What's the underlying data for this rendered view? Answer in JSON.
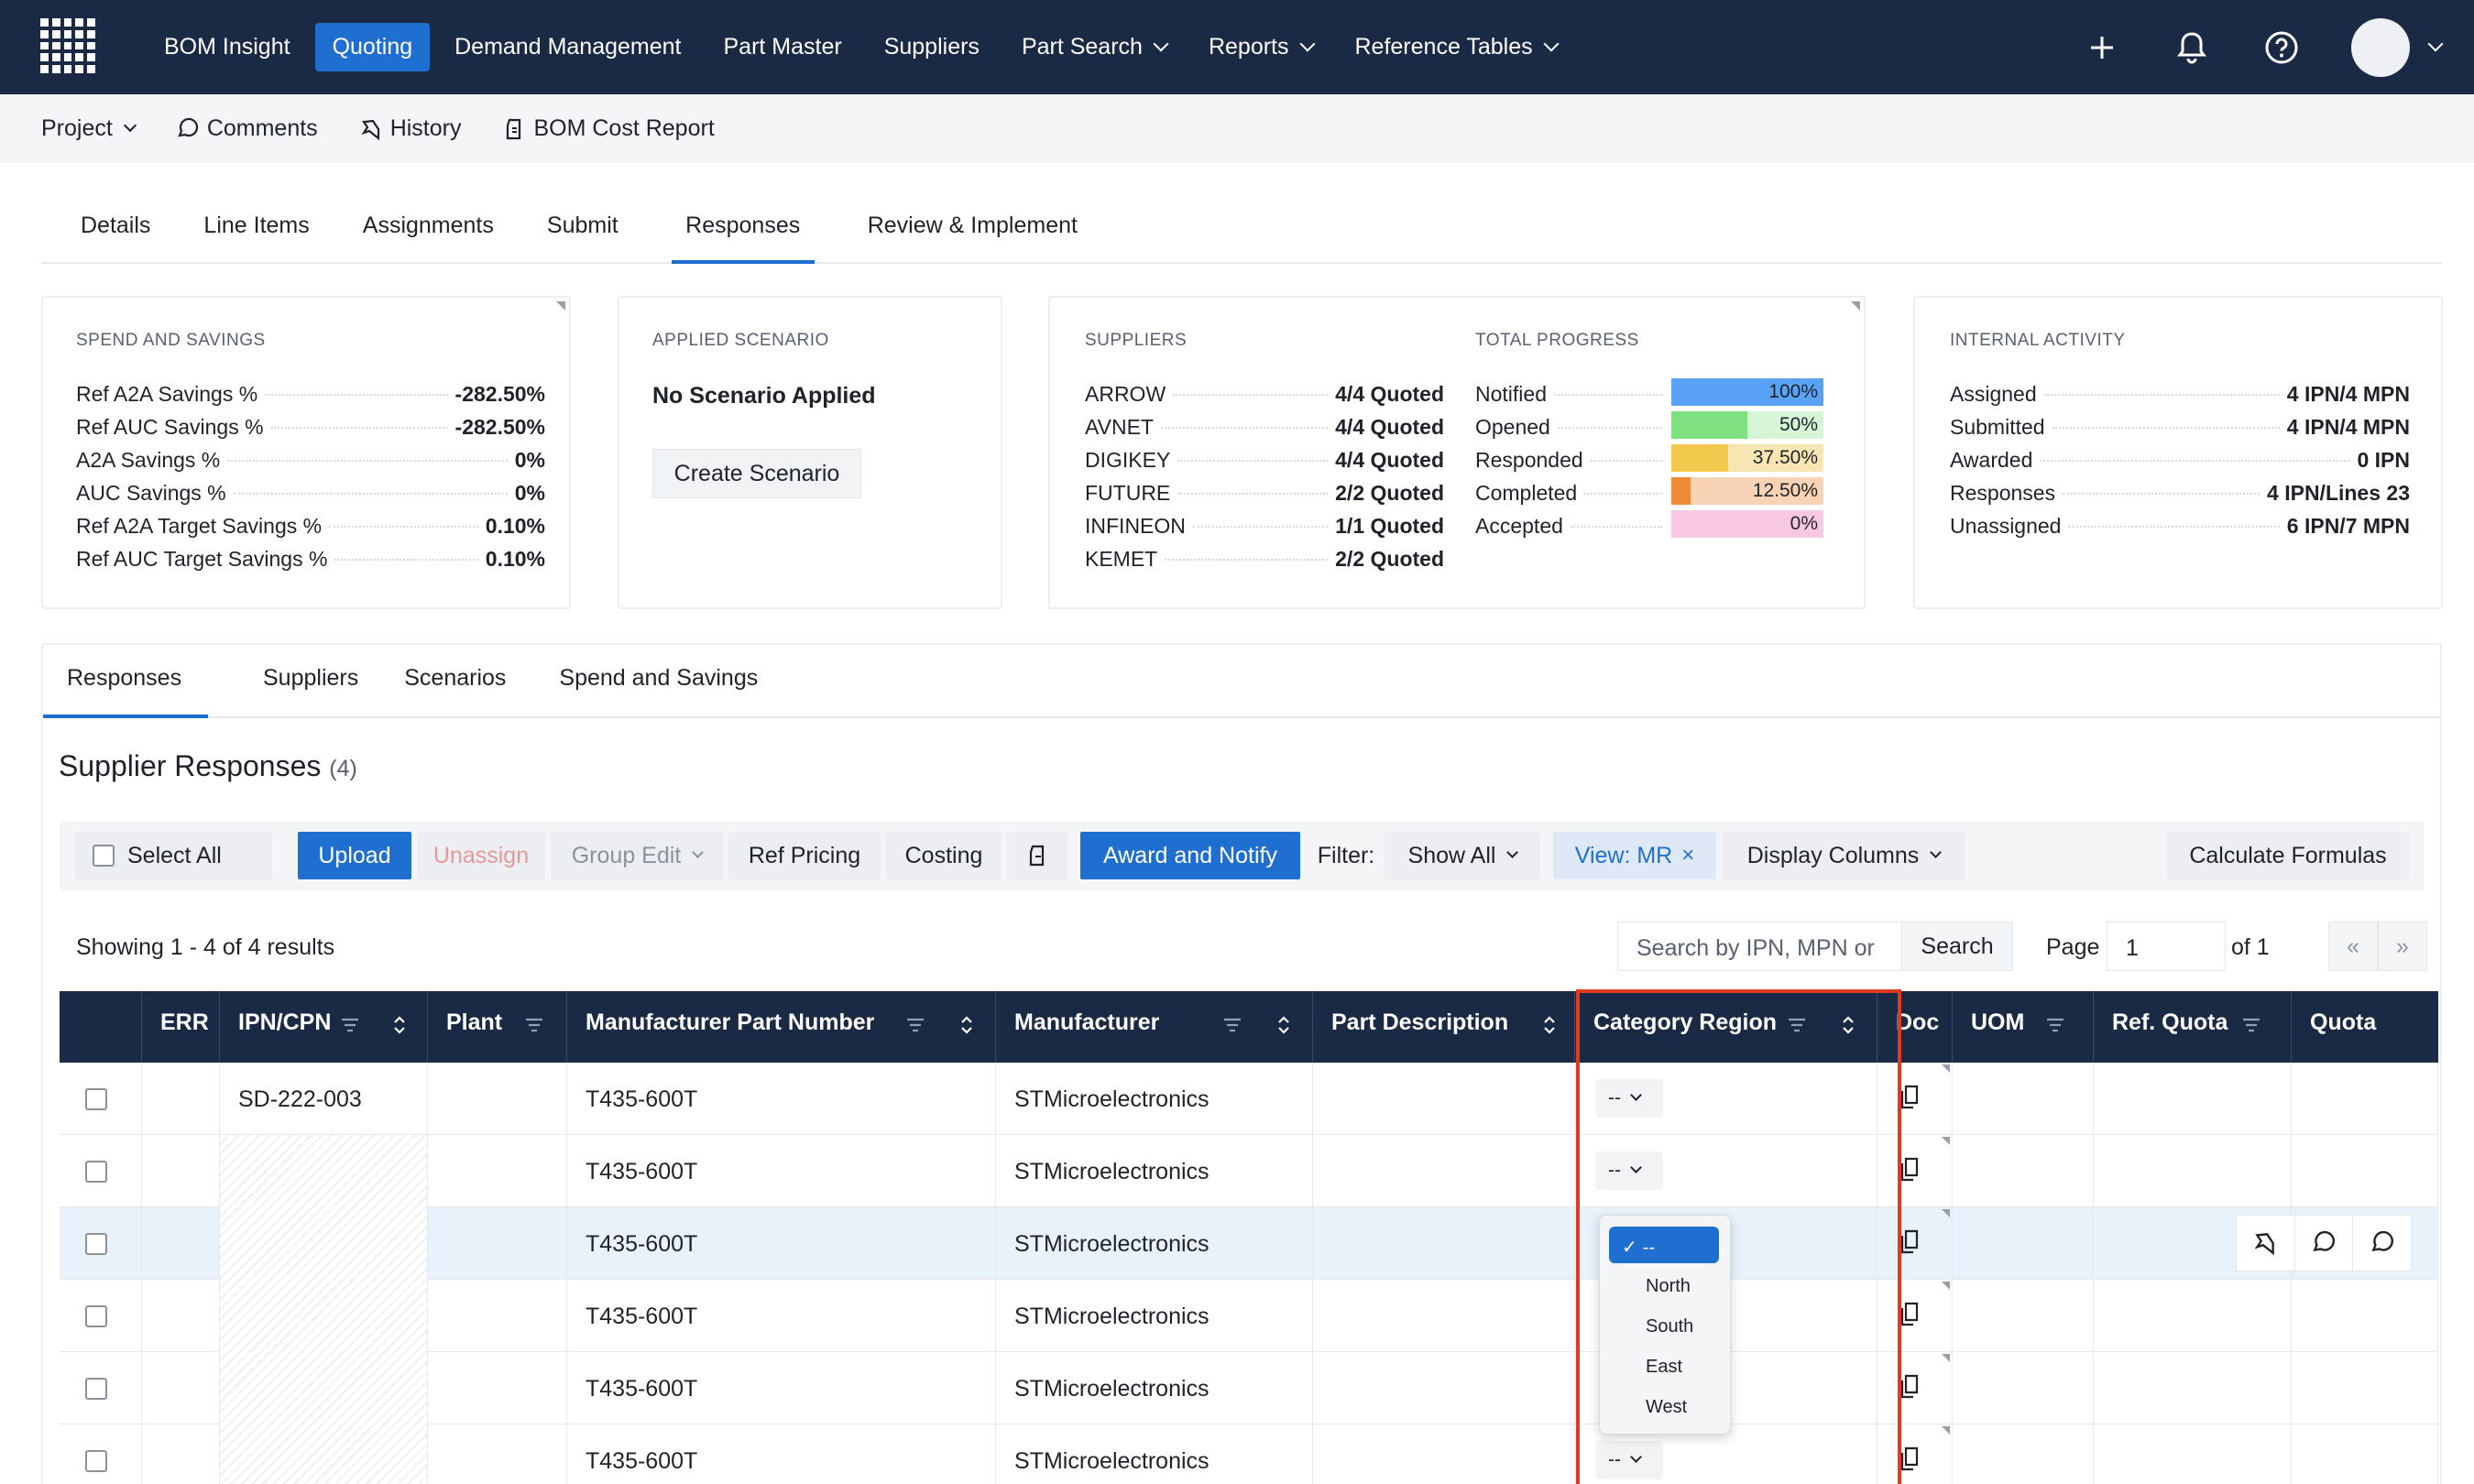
{
  "navbar": {
    "items": [
      {
        "label": "BOM Insight",
        "active": false
      },
      {
        "label": "Quoting",
        "active": true
      },
      {
        "label": "Demand Management",
        "active": false
      },
      {
        "label": "Part Master",
        "active": false
      },
      {
        "label": "Suppliers",
        "active": false
      },
      {
        "label": "Part Search",
        "active": false,
        "dropdown": true
      },
      {
        "label": "Reports",
        "active": false,
        "dropdown": true
      },
      {
        "label": "Reference Tables",
        "active": false,
        "dropdown": true
      }
    ],
    "icons": [
      "plus-icon",
      "bell-icon",
      "help-icon",
      "avatar"
    ]
  },
  "subnav": {
    "project": "Project",
    "comments": "Comments",
    "history": "History",
    "bom_cost_report": "BOM Cost Report"
  },
  "main_tabs": [
    "Details",
    "Line Items",
    "Assignments",
    "Submit",
    "Responses",
    "Review & Implement"
  ],
  "spend": {
    "title": "SPEND AND SAVINGS",
    "rows": [
      {
        "k": "Ref A2A Savings %",
        "v": "-282.50%"
      },
      {
        "k": "Ref AUC Savings %",
        "v": "-282.50%"
      },
      {
        "k": "A2A Savings %",
        "v": "0%"
      },
      {
        "k": "AUC Savings %",
        "v": "0%"
      },
      {
        "k": "Ref A2A Target Savings %",
        "v": "0.10%"
      },
      {
        "k": "Ref AUC Target Savings %",
        "v": "0.10%"
      }
    ]
  },
  "scenario": {
    "title": "APPLIED SCENARIO",
    "status": "No Scenario Applied",
    "button": "Create Scenario"
  },
  "suppliers": {
    "title": "SUPPLIERS",
    "rows": [
      {
        "k": "ARROW",
        "v": "4/4 Quoted"
      },
      {
        "k": "AVNET",
        "v": "4/4 Quoted"
      },
      {
        "k": "DIGIKEY",
        "v": "4/4 Quoted"
      },
      {
        "k": "FUTURE",
        "v": "2/2 Quoted"
      },
      {
        "k": "INFINEON",
        "v": "1/1 Quoted"
      },
      {
        "k": "KEMET",
        "v": "2/2 Quoted"
      }
    ]
  },
  "progress": {
    "title": "TOTAL PROGRESS",
    "rows": [
      {
        "k": "Notified",
        "v": "100%",
        "fraction": 1.0,
        "color": "#5aa2f5",
        "bg": "#cfe3fb"
      },
      {
        "k": "Opened",
        "v": "50%",
        "fraction": 0.5,
        "color": "#7fe07f",
        "bg": "#d6f5d6"
      },
      {
        "k": "Responded",
        "v": "37.50%",
        "fraction": 0.375,
        "color": "#f2c94c",
        "bg": "#f7e6b3"
      },
      {
        "k": "Completed",
        "v": "12.50%",
        "fraction": 0.125,
        "color": "#ef8a3a",
        "bg": "#f8d3b5"
      },
      {
        "k": "Accepted",
        "v": "0%",
        "fraction": 0.0,
        "color": "#f58fc7",
        "bg": "#f8c8e3"
      }
    ]
  },
  "internal": {
    "title": "INTERNAL ACTIVITY",
    "rows": [
      {
        "k": "Assigned",
        "v": "4 IPN/4 MPN"
      },
      {
        "k": "Submitted",
        "v": "4 IPN/4 MPN"
      },
      {
        "k": "Awarded",
        "v": "0 IPN"
      },
      {
        "k": "Responses",
        "v": "4 IPN/Lines 23"
      },
      {
        "k": "Unassigned",
        "v": "6 IPN/7 MPN"
      }
    ]
  },
  "sub_tabs": [
    "Responses",
    "Suppliers",
    "Scenarios",
    "Spend and Savings"
  ],
  "section": {
    "title": "Supplier Responses",
    "count": "(4)"
  },
  "toolbar": {
    "select_all": "Select All",
    "upload": "Upload",
    "unassign": "Unassign",
    "group_edit": "Group Edit",
    "ref_pricing": "Ref Pricing",
    "costing": "Costing",
    "award_notify": "Award and Notify",
    "filter_label": "Filter:",
    "filter_value": "Show All",
    "view_chip": "View: MR",
    "display_columns": "Display Columns",
    "calculate": "Calculate Formulas"
  },
  "results": {
    "showing": "Showing 1 - 4 of 4 results",
    "search_placeholder": "Search by IPN, MPN or",
    "search_button": "Search",
    "page_label": "Page",
    "page_value": "1",
    "page_of": "of 1",
    "first": "«",
    "last": "»"
  },
  "columns": [
    "ERR",
    "IPN/CPN",
    "Plant",
    "Manufacturer Part Number",
    "Manufacturer",
    "Part Description",
    "Category Region",
    "Doc",
    "UOM",
    "Ref. Quota",
    "Quota"
  ],
  "rows": [
    {
      "ipn": "SD-222-003",
      "mpn": "T435-600T",
      "mfr": "STMicroelectronics",
      "region": "--"
    },
    {
      "ipn": "",
      "mpn": "T435-600T",
      "mfr": "STMicroelectronics",
      "region": "--"
    },
    {
      "ipn": "",
      "mpn": "T435-600T",
      "mfr": "STMicroelectronics",
      "region": ""
    },
    {
      "ipn": "",
      "mpn": "T435-600T",
      "mfr": "STMicroelectronics",
      "region": ""
    },
    {
      "ipn": "",
      "mpn": "T435-600T",
      "mfr": "STMicroelectronics",
      "region": ""
    },
    {
      "ipn": "",
      "mpn": "T435-600T",
      "mfr": "STMicroelectronics",
      "region": "--"
    }
  ],
  "dropdown": {
    "options": [
      "--",
      "North",
      "South",
      "East",
      "West"
    ],
    "selected": "--"
  }
}
